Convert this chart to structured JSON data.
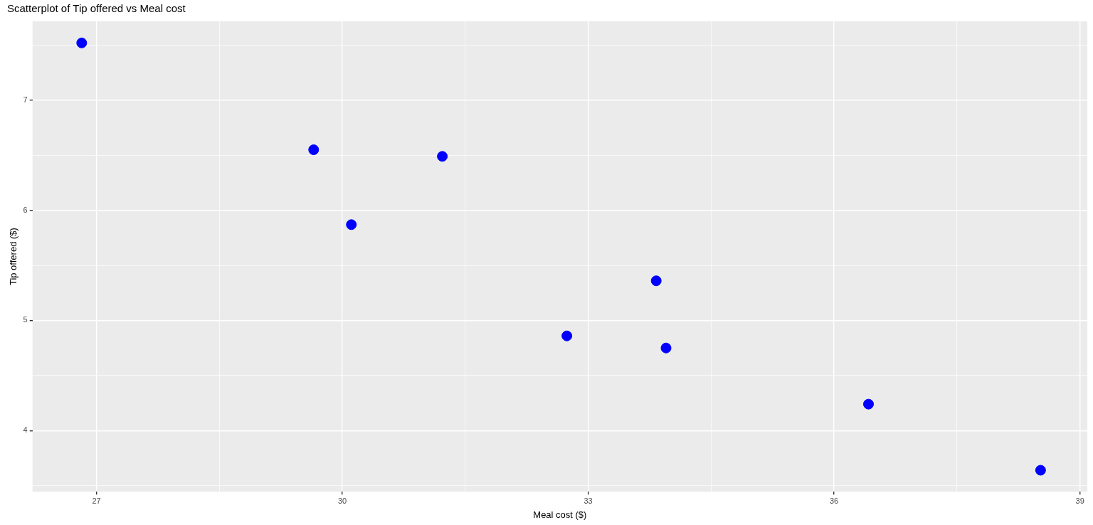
{
  "chart_data": {
    "type": "scatter",
    "title": "Scatterplot of Tip offered vs Meal cost",
    "xlabel": "Meal cost ($)",
    "ylabel": "Tip offered ($)",
    "x": [
      26.82,
      29.65,
      30.11,
      31.22,
      32.74,
      33.83,
      33.95,
      36.42,
      38.52
    ],
    "series": [
      {
        "color": "#0000ff",
        "values": [
          7.52,
          6.55,
          5.87,
          6.49,
          4.86,
          5.36,
          4.75,
          4.24,
          3.64
        ]
      }
    ],
    "xlim": [
      26.22,
      39.09
    ],
    "ylim": [
      3.445,
      7.716
    ],
    "xticks": [
      27,
      {
        "value": 28.5,
        "label": null
      },
      30,
      {
        "value": 31.5,
        "label": null
      },
      33,
      {
        "value": 34.5,
        "label": null
      },
      36,
      {
        "value": 37.5,
        "label": null
      },
      39
    ],
    "yticks": [
      {
        "value": 3.5,
        "label": null
      },
      4,
      {
        "value": 4.5,
        "label": null
      },
      5,
      {
        "value": 5.5,
        "label": null
      },
      6,
      {
        "value": 6.5,
        "label": null
      },
      7,
      {
        "value": 7.5,
        "label": null
      }
    ],
    "grid": true,
    "legend": false,
    "marker": "circle"
  }
}
